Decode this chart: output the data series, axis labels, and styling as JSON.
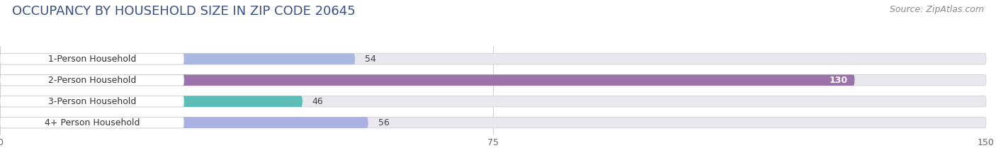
{
  "title": "OCCUPANCY BY HOUSEHOLD SIZE IN ZIP CODE 20645",
  "source": "Source: ZipAtlas.com",
  "categories": [
    "1-Person Household",
    "2-Person Household",
    "3-Person Household",
    "4+ Person Household"
  ],
  "values": [
    54,
    130,
    46,
    56
  ],
  "bar_colors": [
    "#aab8e0",
    "#9b72aa",
    "#5bbcb8",
    "#aab0e0"
  ],
  "label_colors": [
    "#333333",
    "#ffffff",
    "#333333",
    "#333333"
  ],
  "xlim": [
    0,
    150
  ],
  "xticks": [
    0,
    75,
    150
  ],
  "background_color": "#ffffff",
  "bar_background": "#e8e8ee",
  "title_fontsize": 13,
  "source_fontsize": 9,
  "label_fontsize": 9,
  "value_fontsize": 9,
  "tick_fontsize": 9,
  "title_color": "#3a5080",
  "source_color": "#888888"
}
